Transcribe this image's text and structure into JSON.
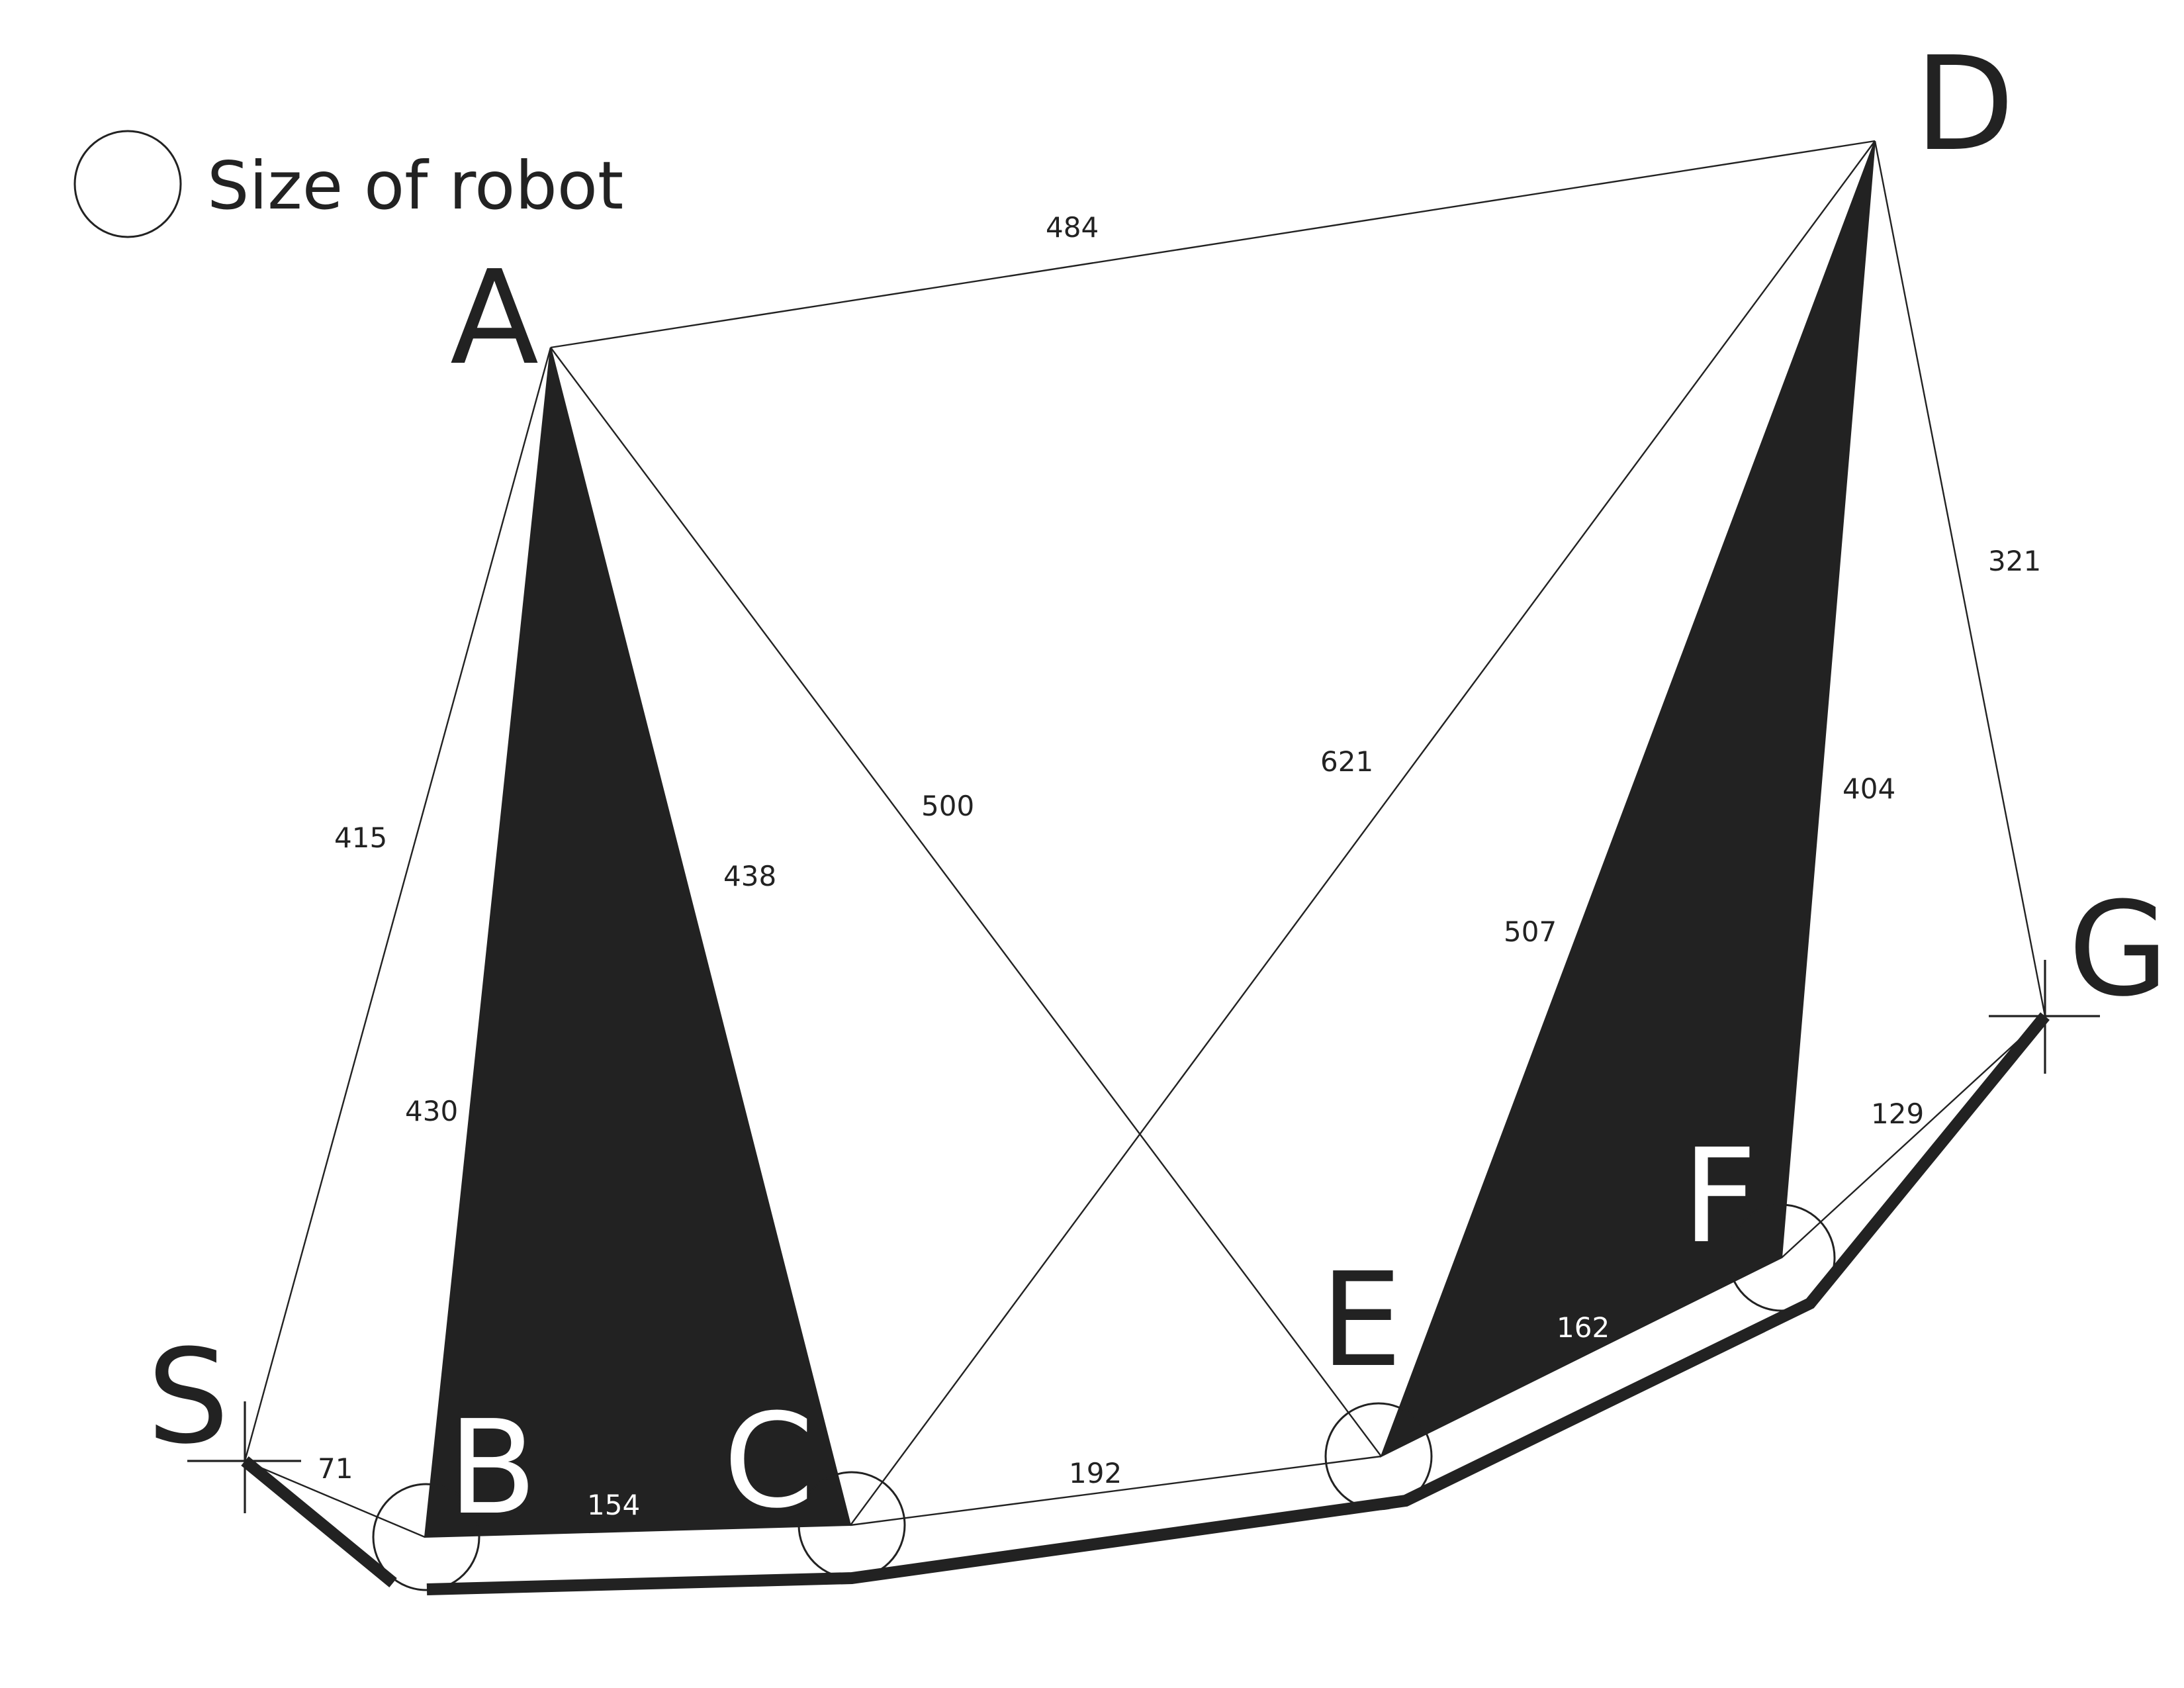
{
  "legend": {
    "label": "Size of robot"
  },
  "nodes": {
    "S": "S",
    "A": "A",
    "B": "B",
    "C": "C",
    "D": "D",
    "E": "E",
    "F": "F",
    "G": "G"
  },
  "edges": {
    "SB": "71",
    "SA": "415",
    "AB": "430",
    "AC": "438",
    "AE": "500",
    "AD": "484",
    "BC": "154",
    "CD": "621",
    "CE": "192",
    "DE": "507",
    "DF": "404",
    "DG": "321",
    "EF": "162",
    "FG": "129"
  },
  "colors": {
    "ink": "#222222",
    "background": "#ffffff"
  }
}
